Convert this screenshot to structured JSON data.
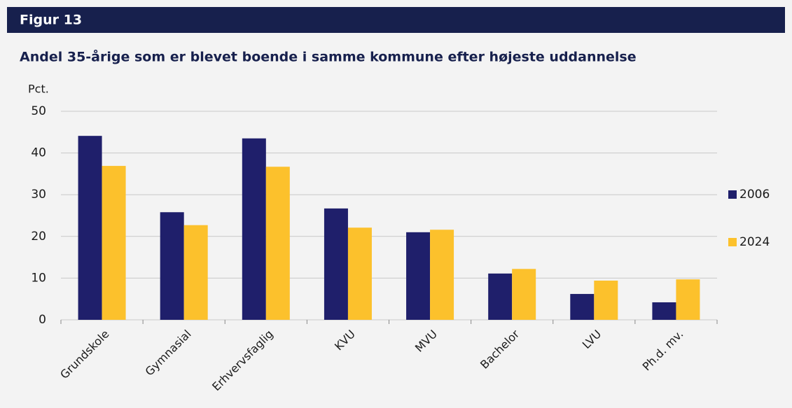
{
  "header": "Figur 13",
  "chart_data": {
    "type": "bar",
    "title": "Andel 35-årige som er blevet boende i samme kommune efter højeste uddannelse",
    "y_label": "Pct.",
    "categories": [
      "Grundskole",
      "Gymnasial",
      "Erhvervsfaglig",
      "KVU",
      "MVU",
      "Bachelor",
      "LVU",
      "Ph.d. mv."
    ],
    "series": [
      {
        "name": "2006",
        "color": "#1f1f6b",
        "values": [
          44.1,
          25.8,
          43.5,
          26.7,
          21.0,
          11.1,
          6.2,
          4.2
        ]
      },
      {
        "name": "2024",
        "color": "#fcc12c",
        "values": [
          36.9,
          22.7,
          36.7,
          22.1,
          21.6,
          12.2,
          9.4,
          9.7
        ]
      }
    ],
    "ylim": [
      0,
      50
    ],
    "yticks": [
      0,
      10,
      20,
      30,
      40,
      50
    ],
    "grid": true,
    "legend": "right"
  }
}
